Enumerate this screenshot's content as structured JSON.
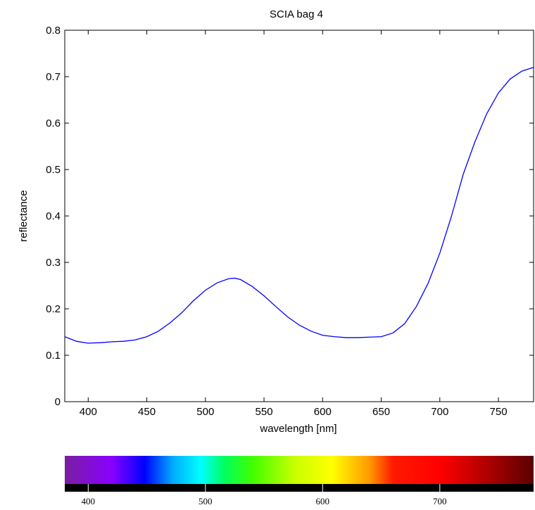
{
  "chart_data": {
    "type": "line",
    "title": "SCIA bag 4",
    "xlabel": "wavelength [nm]",
    "ylabel": "reflectance",
    "xlim": [
      380,
      780
    ],
    "ylim": [
      0,
      0.8
    ],
    "xticks": [
      400,
      450,
      500,
      550,
      600,
      650,
      700,
      750
    ],
    "xtick_labels": [
      "400",
      "450",
      "500",
      "550",
      "600",
      "650",
      "700",
      "750"
    ],
    "yticks": [
      0,
      0.1,
      0.2,
      0.3,
      0.4,
      0.5,
      0.6,
      0.7,
      0.8
    ],
    "ytick_labels": [
      "0",
      "0.1",
      "0.2",
      "0.3",
      "0.4",
      "0.5",
      "0.6",
      "0.7",
      "0.8"
    ],
    "grid": false,
    "series": [
      {
        "color": "#0000ff",
        "x": [
          380,
          390,
          400,
          410,
          420,
          430,
          440,
          450,
          460,
          470,
          480,
          490,
          500,
          510,
          520,
          525,
          530,
          540,
          550,
          560,
          570,
          580,
          590,
          600,
          610,
          620,
          630,
          640,
          650,
          660,
          670,
          680,
          690,
          700,
          710,
          720,
          730,
          740,
          750,
          760,
          770,
          780
        ],
        "y": [
          0.14,
          0.13,
          0.126,
          0.127,
          0.129,
          0.13,
          0.133,
          0.14,
          0.152,
          0.17,
          0.192,
          0.218,
          0.24,
          0.256,
          0.265,
          0.266,
          0.263,
          0.248,
          0.228,
          0.205,
          0.183,
          0.165,
          0.152,
          0.143,
          0.14,
          0.138,
          0.138,
          0.139,
          0.14,
          0.148,
          0.168,
          0.205,
          0.255,
          0.32,
          0.4,
          0.49,
          0.56,
          0.62,
          0.665,
          0.695,
          0.712,
          0.72
        ]
      }
    ]
  },
  "spectrum_bar": {
    "tick_labels": [
      "400",
      "500",
      "600",
      "700"
    ],
    "ticks": [
      400,
      500,
      600,
      700
    ],
    "xlim": [
      380,
      780
    ]
  }
}
